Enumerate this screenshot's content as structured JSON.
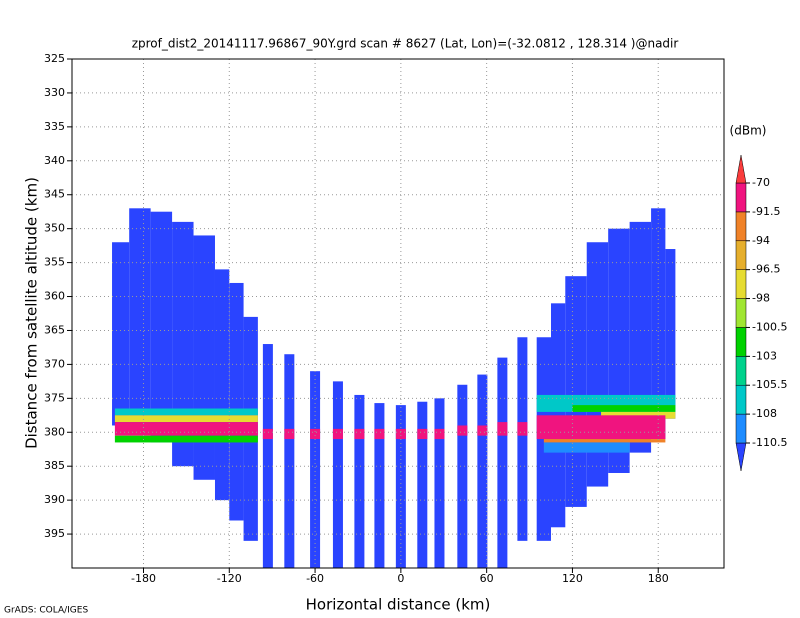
{
  "chart_data": {
    "type": "shaded",
    "title": "zprof_dist2_20141117.96867_90Y.grd  scan # 8627  (Lat, Lon)=(-32.0812 , 128.314 )@nadir",
    "xlabel": "Horizontal distance (km)",
    "ylabel": "Distance from satellite altitude (km)",
    "credit": "GrADS: COLA/IGES",
    "colorbar_unit": "(dBm)",
    "xlim": [
      -230,
      226
    ],
    "ylim": [
      325,
      400
    ],
    "y_inverted": true,
    "xticks": [
      -180,
      -120,
      -60,
      0,
      60,
      120,
      180
    ],
    "yticks": [
      325,
      330,
      335,
      340,
      345,
      350,
      355,
      360,
      365,
      370,
      375,
      380,
      385,
      390,
      395
    ],
    "grid": true,
    "levels": [
      -110.5,
      -108,
      -105.5,
      -103,
      -100.5,
      -98,
      -96.5,
      -94,
      -91.5,
      -70
    ],
    "colors": [
      "#2a44ff",
      "#1e8cff",
      "#00c8c8",
      "#00d28c",
      "#00d200",
      "#a0e632",
      "#e6dc32",
      "#e6af2d",
      "#f08228",
      "#f0147f",
      "#fa3c3c"
    ],
    "cells": [
      [
        -202,
        -190,
        352,
        379,
        -112
      ],
      [
        -190,
        -175,
        347,
        380,
        -112
      ],
      [
        -175,
        -160,
        347.5,
        381.5,
        -112
      ],
      [
        -160,
        -145,
        349,
        385,
        -112
      ],
      [
        -145,
        -130,
        351,
        387,
        -112
      ],
      [
        -130,
        -120,
        356,
        390,
        -112
      ],
      [
        -120,
        -110,
        358,
        393,
        -112
      ],
      [
        -110,
        -100,
        363,
        396,
        -112
      ],
      [
        95,
        105,
        366,
        396,
        -112
      ],
      [
        105,
        115,
        361,
        394,
        -112
      ],
      [
        115,
        130,
        357,
        391,
        -112
      ],
      [
        130,
        145,
        352,
        388,
        -112
      ],
      [
        145,
        160,
        350,
        386,
        -112
      ],
      [
        160,
        175,
        349,
        383,
        -112
      ],
      [
        175,
        185,
        347,
        381,
        -112
      ],
      [
        185,
        192,
        353,
        378,
        -112
      ],
      [
        -96.5,
        -89.5,
        367,
        400,
        -112
      ],
      [
        -81.5,
        -74.5,
        368.5,
        400,
        -112
      ],
      [
        -63.5,
        -56.5,
        371,
        400,
        -112
      ],
      [
        -47.5,
        -40.5,
        372.5,
        400,
        -112
      ],
      [
        -32.5,
        -25.5,
        374.5,
        400,
        -112
      ],
      [
        -18.5,
        -11.5,
        375.7,
        400,
        -112
      ],
      [
        -3.5,
        3.5,
        376,
        400,
        -112
      ],
      [
        11.5,
        18.5,
        375.5,
        400,
        -112
      ],
      [
        23.5,
        30.5,
        375,
        400,
        -112
      ],
      [
        39.5,
        46.5,
        373,
        400,
        -112
      ],
      [
        53.5,
        60.5,
        371.5,
        400,
        -112
      ],
      [
        67.5,
        74.5,
        369,
        400,
        -112
      ],
      [
        81.5,
        88.5,
        366,
        396,
        -112
      ],
      [
        -96.5,
        -89.5,
        379.5,
        381,
        -85
      ],
      [
        -81.5,
        -74.5,
        379.5,
        381,
        -85
      ],
      [
        -63.5,
        -56.5,
        379.5,
        381,
        -85
      ],
      [
        -47.5,
        -40.5,
        379.5,
        381,
        -85
      ],
      [
        -32.5,
        -25.5,
        379.5,
        381,
        -85
      ],
      [
        -18.5,
        -11.5,
        379.5,
        381,
        -85
      ],
      [
        -3.5,
        3.5,
        379.5,
        381,
        -85
      ],
      [
        11.5,
        18.5,
        379.5,
        381,
        -85
      ],
      [
        23.5,
        30.5,
        379.5,
        381,
        -85
      ],
      [
        39.5,
        46.5,
        379,
        380.5,
        -85
      ],
      [
        53.5,
        60.5,
        379,
        380.5,
        -85
      ],
      [
        67.5,
        74.5,
        378.5,
        380.5,
        -85
      ],
      [
        81.5,
        88.5,
        378.5,
        380.5,
        -85
      ],
      [
        -200,
        -100,
        376.5,
        377.5,
        -107
      ],
      [
        -200,
        -100,
        377.5,
        378.5,
        -97
      ],
      [
        -200,
        -100,
        378.5,
        380.5,
        -85
      ],
      [
        -200,
        -100,
        380.5,
        381.5,
        -102
      ],
      [
        95,
        192,
        374.5,
        377,
        -107
      ],
      [
        120,
        192,
        376,
        377,
        -102
      ],
      [
        140,
        192,
        377,
        378,
        -97
      ],
      [
        95,
        185,
        377.5,
        381,
        -85
      ],
      [
        100,
        185,
        381,
        381.5,
        -93
      ],
      [
        100,
        160,
        381.5,
        383,
        -109
      ]
    ]
  }
}
